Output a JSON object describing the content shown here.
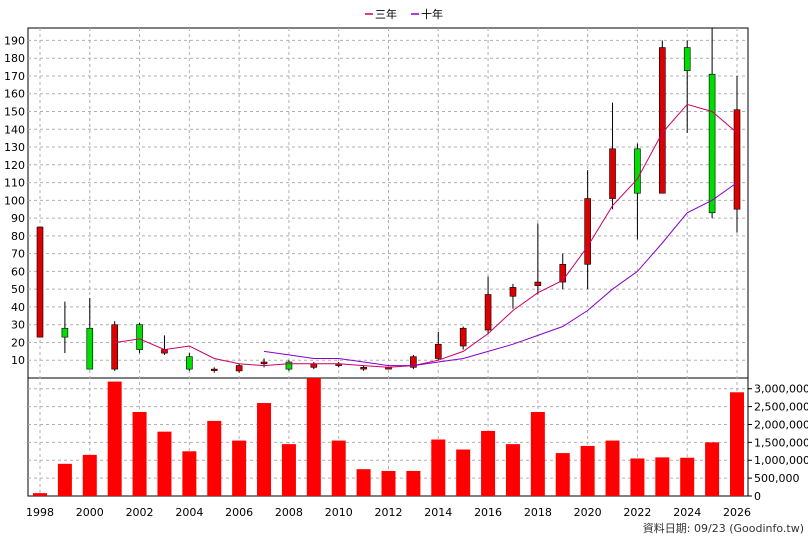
{
  "chart_data": {
    "type": "candlestick_with_volume",
    "legend": [
      {
        "label": "三年",
        "color": "#cc0066"
      },
      {
        "label": "十年",
        "color": "#8800cc"
      }
    ],
    "legend_position": "top-center",
    "grid": true,
    "price_axis": {
      "ticks": [
        10,
        20,
        30,
        40,
        50,
        60,
        70,
        80,
        90,
        100,
        110,
        120,
        130,
        140,
        150,
        160,
        170,
        180,
        190
      ],
      "ylim": [
        0,
        197
      ]
    },
    "volume_axis": {
      "ticks": [
        0,
        500000,
        1000000,
        1500000,
        2000000,
        2500000,
        3000000
      ],
      "tick_labels": [
        "0",
        "500,000",
        "1,000,000",
        "1,500,000",
        "2,000,000",
        "2,500,000",
        "3,000,000"
      ],
      "ylim": [
        0,
        3300000
      ]
    },
    "x_ticks": [
      "1998",
      "2000",
      "2002",
      "2004",
      "2006",
      "2008",
      "2010",
      "2012",
      "2014",
      "2016",
      "2018",
      "2020",
      "2022",
      "2024",
      "2026"
    ],
    "years": [
      1998,
      1999,
      2000,
      2001,
      2002,
      2003,
      2004,
      2005,
      2006,
      2007,
      2008,
      2009,
      2010,
      2011,
      2012,
      2013,
      2014,
      2015,
      2016,
      2017,
      2018,
      2019,
      2020,
      2021,
      2022,
      2023,
      2024,
      2025,
      2026
    ],
    "candles": [
      {
        "open": 23,
        "close": 85,
        "high": 85,
        "low": 23
      },
      {
        "open": 28,
        "close": 23,
        "high": 43,
        "low": 14
      },
      {
        "open": 28,
        "close": 5,
        "high": 45,
        "low": 5
      },
      {
        "open": 5,
        "close": 30,
        "high": 32,
        "low": 4
      },
      {
        "open": 30,
        "close": 16,
        "high": 31,
        "low": 14
      },
      {
        "open": 14,
        "close": 16,
        "high": 24,
        "low": 13
      },
      {
        "open": 12,
        "close": 5,
        "high": 14,
        "low": 4
      },
      {
        "open": 5,
        "close": 5,
        "high": 6,
        "low": 3
      },
      {
        "open": 4,
        "close": 7,
        "high": 8,
        "low": 3
      },
      {
        "open": 8,
        "close": 9,
        "high": 11,
        "low": 6
      },
      {
        "open": 9,
        "close": 5,
        "high": 10,
        "low": 4
      },
      {
        "open": 6,
        "close": 8,
        "high": 9,
        "low": 5
      },
      {
        "open": 7,
        "close": 8,
        "high": 9,
        "low": 6
      },
      {
        "open": 5,
        "close": 6,
        "high": 7,
        "low": 4
      },
      {
        "open": 5,
        "close": 6,
        "high": 6,
        "low": 5
      },
      {
        "open": 6,
        "close": 12,
        "high": 13,
        "low": 5
      },
      {
        "open": 11,
        "close": 19,
        "high": 26,
        "low": 10
      },
      {
        "open": 18,
        "close": 28,
        "high": 29,
        "low": 16
      },
      {
        "open": 27,
        "close": 47,
        "high": 57,
        "low": 25
      },
      {
        "open": 46,
        "close": 51,
        "high": 53,
        "low": 39
      },
      {
        "open": 52,
        "close": 54,
        "high": 87,
        "low": 47
      },
      {
        "open": 54,
        "close": 64,
        "high": 70,
        "low": 50
      },
      {
        "open": 64,
        "close": 101,
        "high": 117,
        "low": 50
      },
      {
        "open": 101,
        "close": 129,
        "high": 155,
        "low": 95
      },
      {
        "open": 129,
        "close": 104,
        "high": 132,
        "low": 78
      },
      {
        "open": 104,
        "close": 186,
        "high": 190,
        "low": 104
      },
      {
        "open": 186,
        "close": 173,
        "high": 190,
        "low": 138
      },
      {
        "open": 171,
        "close": 93,
        "high": 197,
        "low": 90
      },
      {
        "open": 95,
        "close": 151,
        "high": 170,
        "low": 82
      }
    ],
    "volumes": [
      80000,
      900000,
      1150000,
      3200000,
      2350000,
      1800000,
      1250000,
      2100000,
      1550000,
      2600000,
      1450000,
      3300000,
      1550000,
      750000,
      700000,
      700000,
      1580000,
      1300000,
      1820000,
      1450000,
      2350000,
      1200000,
      1400000,
      1550000,
      1050000,
      1080000,
      1070000,
      1500000,
      2900000
    ],
    "series": [
      {
        "name": "三年",
        "values": [
          null,
          null,
          null,
          20,
          22,
          16,
          18,
          11,
          8,
          7,
          8,
          8,
          8,
          7,
          6,
          7,
          10,
          15,
          25,
          38,
          48,
          55,
          74,
          97,
          112,
          138,
          154,
          150,
          138
        ]
      },
      {
        "name": "十年",
        "values": [
          null,
          null,
          null,
          null,
          null,
          null,
          null,
          null,
          null,
          15,
          13,
          11,
          11,
          9,
          7,
          7,
          9,
          11,
          15,
          19,
          24,
          29,
          38,
          50,
          60,
          76,
          93,
          100,
          110
        ]
      }
    ]
  },
  "watermark": "資料日期: 09/23  (Goodinfo.tw)"
}
